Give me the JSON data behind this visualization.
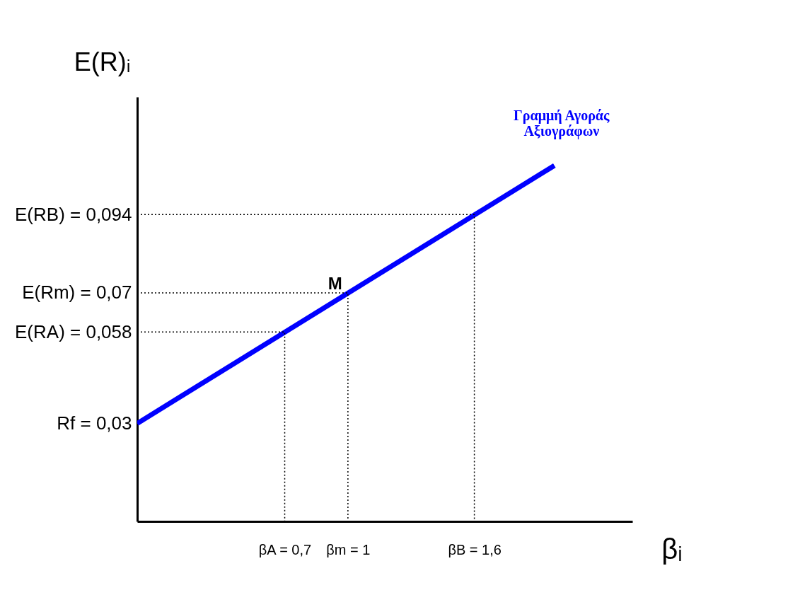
{
  "chart_data": {
    "type": "line",
    "xlabel": "βᵢ",
    "ylabel": "E(R)ᵢ",
    "xlim": [
      0,
      2.35
    ],
    "ylim": [
      0,
      0.13
    ],
    "xticks": [
      {
        "value": 0.7,
        "label": "βA = 0,7"
      },
      {
        "value": 1,
        "label": "βm = 1"
      },
      {
        "value": 1.6,
        "label": "βB = 1,6"
      }
    ],
    "yticks": [
      {
        "value": 0.03,
        "label": "Rf = 0,03"
      },
      {
        "value": 0.058,
        "label": "E(RA) = 0,058"
      },
      {
        "value": 0.07,
        "label": "E(Rm) = 0,07"
      },
      {
        "value": 0.094,
        "label": "E(RB) = 0,094"
      }
    ],
    "series": [
      {
        "name": "Γραμμή Αγοράς\nΑξιογράφων",
        "color": "#0000ff",
        "x": [
          0,
          1.98
        ],
        "values": [
          0.03,
          0.109
        ],
        "line_style": "solid"
      },
      {
        "color": "#000000",
        "x": [
          0,
          0.7,
          0.7
        ],
        "values": [
          0.058,
          0.058,
          0
        ],
        "line_style": "dotted"
      },
      {
        "color": "#000000",
        "x": [
          0,
          1,
          1
        ],
        "values": [
          0.07,
          0.07,
          0
        ],
        "line_style": "dotted"
      },
      {
        "color": "#000000",
        "x": [
          0,
          1.6,
          1.6
        ],
        "values": [
          0.094,
          0.094,
          0
        ],
        "line_style": "dotted"
      }
    ],
    "annotations": [
      {
        "text": "M",
        "x": 1,
        "y": 0.07
      }
    ],
    "grid": false
  }
}
